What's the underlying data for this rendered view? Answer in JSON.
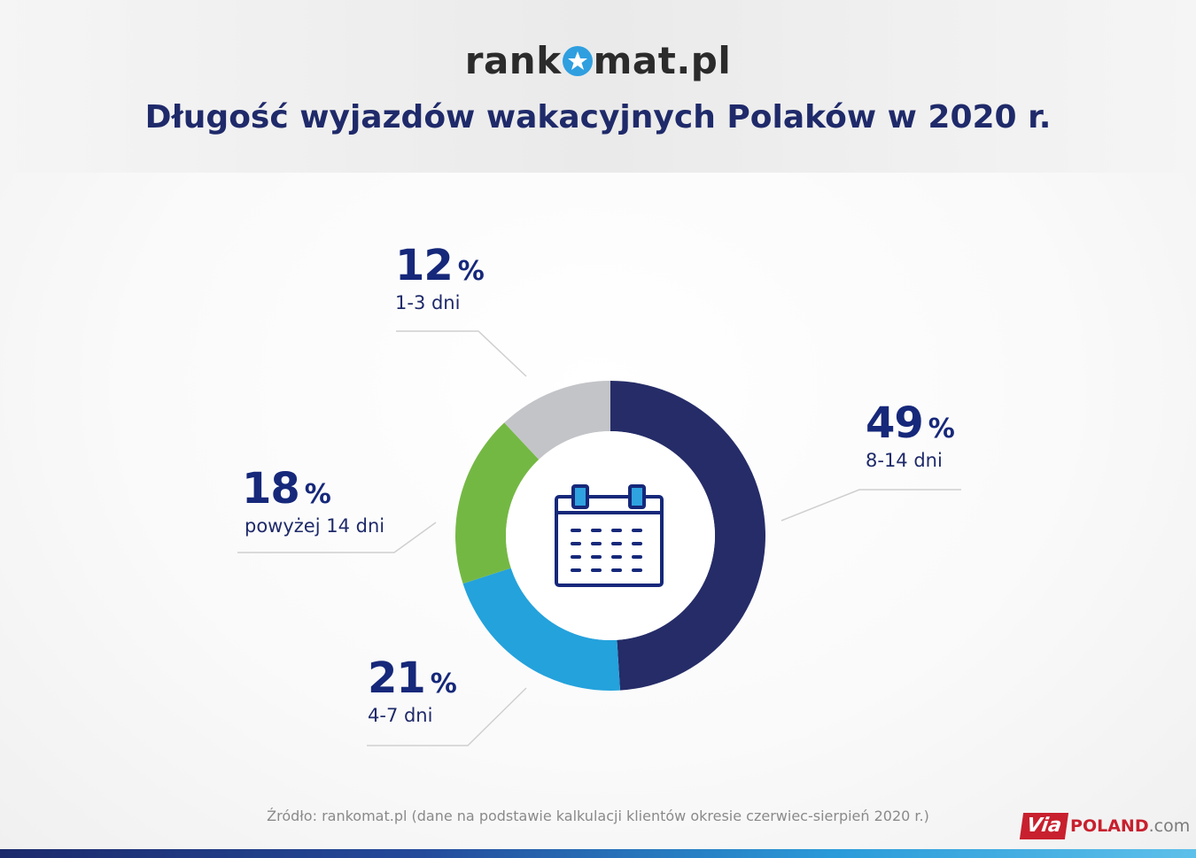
{
  "brand": {
    "logo_pre": "rank",
    "logo_post": "mat.pl"
  },
  "title": "Długość wyjazdów wakacyjnych Polaków w 2020 r.",
  "chart_data": {
    "type": "pie",
    "donut": true,
    "center_icon": "calendar-icon",
    "order": "clockwise-from-top",
    "slices": [
      {
        "label": "8-14 dni",
        "value": 49,
        "color": "#252c68"
      },
      {
        "label": "4-7 dni",
        "value": 21,
        "color": "#24a2dc"
      },
      {
        "label": "powyżej 14 dni",
        "value": 18,
        "color": "#74b844"
      },
      {
        "label": "1-3 dni",
        "value": 12,
        "color": "#c3c4c8"
      }
    ],
    "unit": "%"
  },
  "labels": {
    "s1": {
      "value": "49",
      "unit": "%",
      "category": "8-14 dni"
    },
    "s2": {
      "value": "21",
      "unit": "%",
      "category": "4-7 dni"
    },
    "s3": {
      "value": "18",
      "unit": "%",
      "category": "powyżej 14 dni"
    },
    "s4": {
      "value": "12",
      "unit": "%",
      "category": "1-3 dni"
    }
  },
  "source": "Źródło: rankomat.pl (dane na podstawie kalkulacji klientów okresie czerwiec-sierpień 2020 r.)",
  "watermark": {
    "via": "Via",
    "poland": "POLAND",
    "com": ".com"
  }
}
